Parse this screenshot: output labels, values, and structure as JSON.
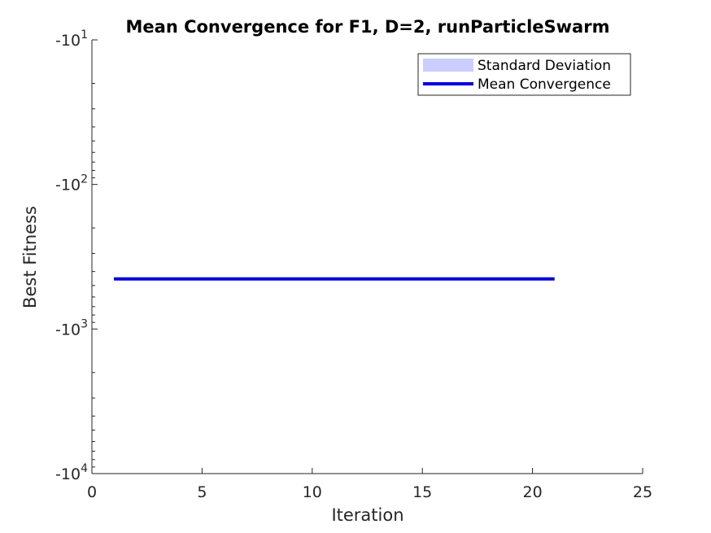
{
  "chart_data": {
    "type": "line",
    "title": "Mean Convergence for F1, D=2, runParticleSwarm",
    "xlabel": "Iteration",
    "ylabel": "Best Fitness",
    "xlim": [
      0,
      25
    ],
    "ylim": [
      -10000,
      -10
    ],
    "yscale": "log",
    "xticks": [
      0,
      5,
      10,
      15,
      20,
      25
    ],
    "yticks": [
      {
        "base": "-10",
        "exp": "1"
      },
      {
        "base": "-10",
        "exp": "2"
      },
      {
        "base": "-10",
        "exp": "3"
      },
      {
        "base": "-10",
        "exp": "4"
      }
    ],
    "legend_position": "top-right",
    "series": [
      {
        "name": "Standard Deviation",
        "kind": "band",
        "color": "#ccccff",
        "x": [
          1,
          21
        ],
        "lower": [
          -450,
          -450
        ],
        "upper": [
          -450,
          -450
        ]
      },
      {
        "name": "Mean Convergence",
        "kind": "line",
        "color": "#0000dd",
        "x": [
          1,
          2,
          3,
          4,
          5,
          6,
          7,
          8,
          9,
          10,
          11,
          12,
          13,
          14,
          15,
          16,
          17,
          18,
          19,
          20,
          21
        ],
        "y": [
          -450,
          -450,
          -450,
          -450,
          -450,
          -450,
          -450,
          -450,
          -450,
          -450,
          -450,
          -450,
          -450,
          -450,
          -450,
          -450,
          -450,
          -450,
          -450,
          -450,
          -450
        ]
      }
    ]
  }
}
